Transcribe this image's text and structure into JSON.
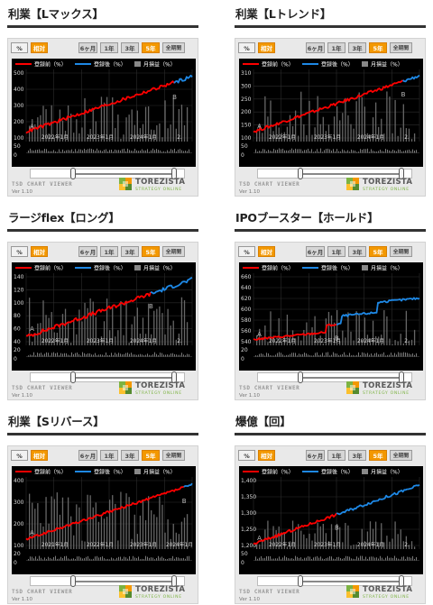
{
  "controls": {
    "unit_buttons": [
      "%",
      "相対"
    ],
    "period_buttons": [
      "6ヶ月",
      "1年",
      "3年",
      "5年",
      "全期間"
    ],
    "selected_period": "5年"
  },
  "legend": {
    "before": "登録前（%）",
    "after": "登録後（%）",
    "monthly": "月損益（%）"
  },
  "viewer": {
    "name": "TSD CHART VIEWER",
    "version": "Ver 1.10"
  },
  "logo": {
    "name": "TOREZISTA",
    "sub": "STRATEGY ONLINE"
  },
  "colors": {
    "before": "#ff0000",
    "after": "#1e88e5",
    "bars": "#666666",
    "accent": "#f39800"
  },
  "panels": [
    {
      "title": "利業【Lマックス】",
      "y_ticks": [
        "500",
        "400",
        "300",
        "200",
        "100"
      ],
      "sub_ticks": [
        "50",
        "0"
      ],
      "x_ticks": [
        "2022年1月",
        "2023年1月",
        "2024年1月",
        "2."
      ],
      "markers": [
        "A",
        "B"
      ],
      "series_split": 0.89
    },
    {
      "title": "利業【Lトレンド】",
      "y_ticks": [
        "310",
        "300",
        "250",
        "200",
        "150",
        "100"
      ],
      "sub_ticks": [
        "50",
        "0"
      ],
      "x_ticks": [
        "2022年1月",
        "2023年1月",
        "2024年1月",
        "2."
      ],
      "markers": [
        "A",
        "B"
      ],
      "series_split": 0.9
    },
    {
      "title": "ラージflex【ロング】",
      "y_ticks": [
        "140",
        "120",
        "100",
        "80",
        "60",
        "40"
      ],
      "sub_ticks": [
        "20",
        "0"
      ],
      "x_ticks": [
        "2022年1月",
        "2023年1月",
        "2024年1月",
        "2."
      ],
      "markers": [
        "A",
        "B"
      ],
      "series_split": 0.75
    },
    {
      "title": "IPOブースター【ホールド】",
      "y_ticks": [
        "660",
        "640",
        "620",
        "600",
        "580",
        "560",
        "540"
      ],
      "sub_ticks": [
        "20",
        "0"
      ],
      "x_ticks": [
        "2022年1月",
        "2023年1月",
        "2024年1月",
        "2."
      ],
      "markers": [
        "A",
        "B"
      ],
      "series_split": 0.5
    },
    {
      "title": "利業【Sリバース】",
      "y_ticks": [
        "400",
        "300",
        "200",
        "100"
      ],
      "sub_ticks": [
        "20",
        "0"
      ],
      "x_ticks": [
        "2021年1月",
        "2022年1月",
        "2023年1月",
        "2024年1月"
      ],
      "markers": [
        "A",
        "B"
      ],
      "series_split": 0.95
    },
    {
      "title": "爆億【回】",
      "y_ticks": [
        "1,400",
        "1,350",
        "1,300",
        "1,250",
        "1,200"
      ],
      "sub_ticks": [
        "50",
        "0"
      ],
      "x_ticks": [
        "2022年1月",
        "2023年1月",
        "2024年1月",
        "2."
      ],
      "markers": [
        "A",
        "B"
      ],
      "series_split": 0.5
    }
  ]
}
